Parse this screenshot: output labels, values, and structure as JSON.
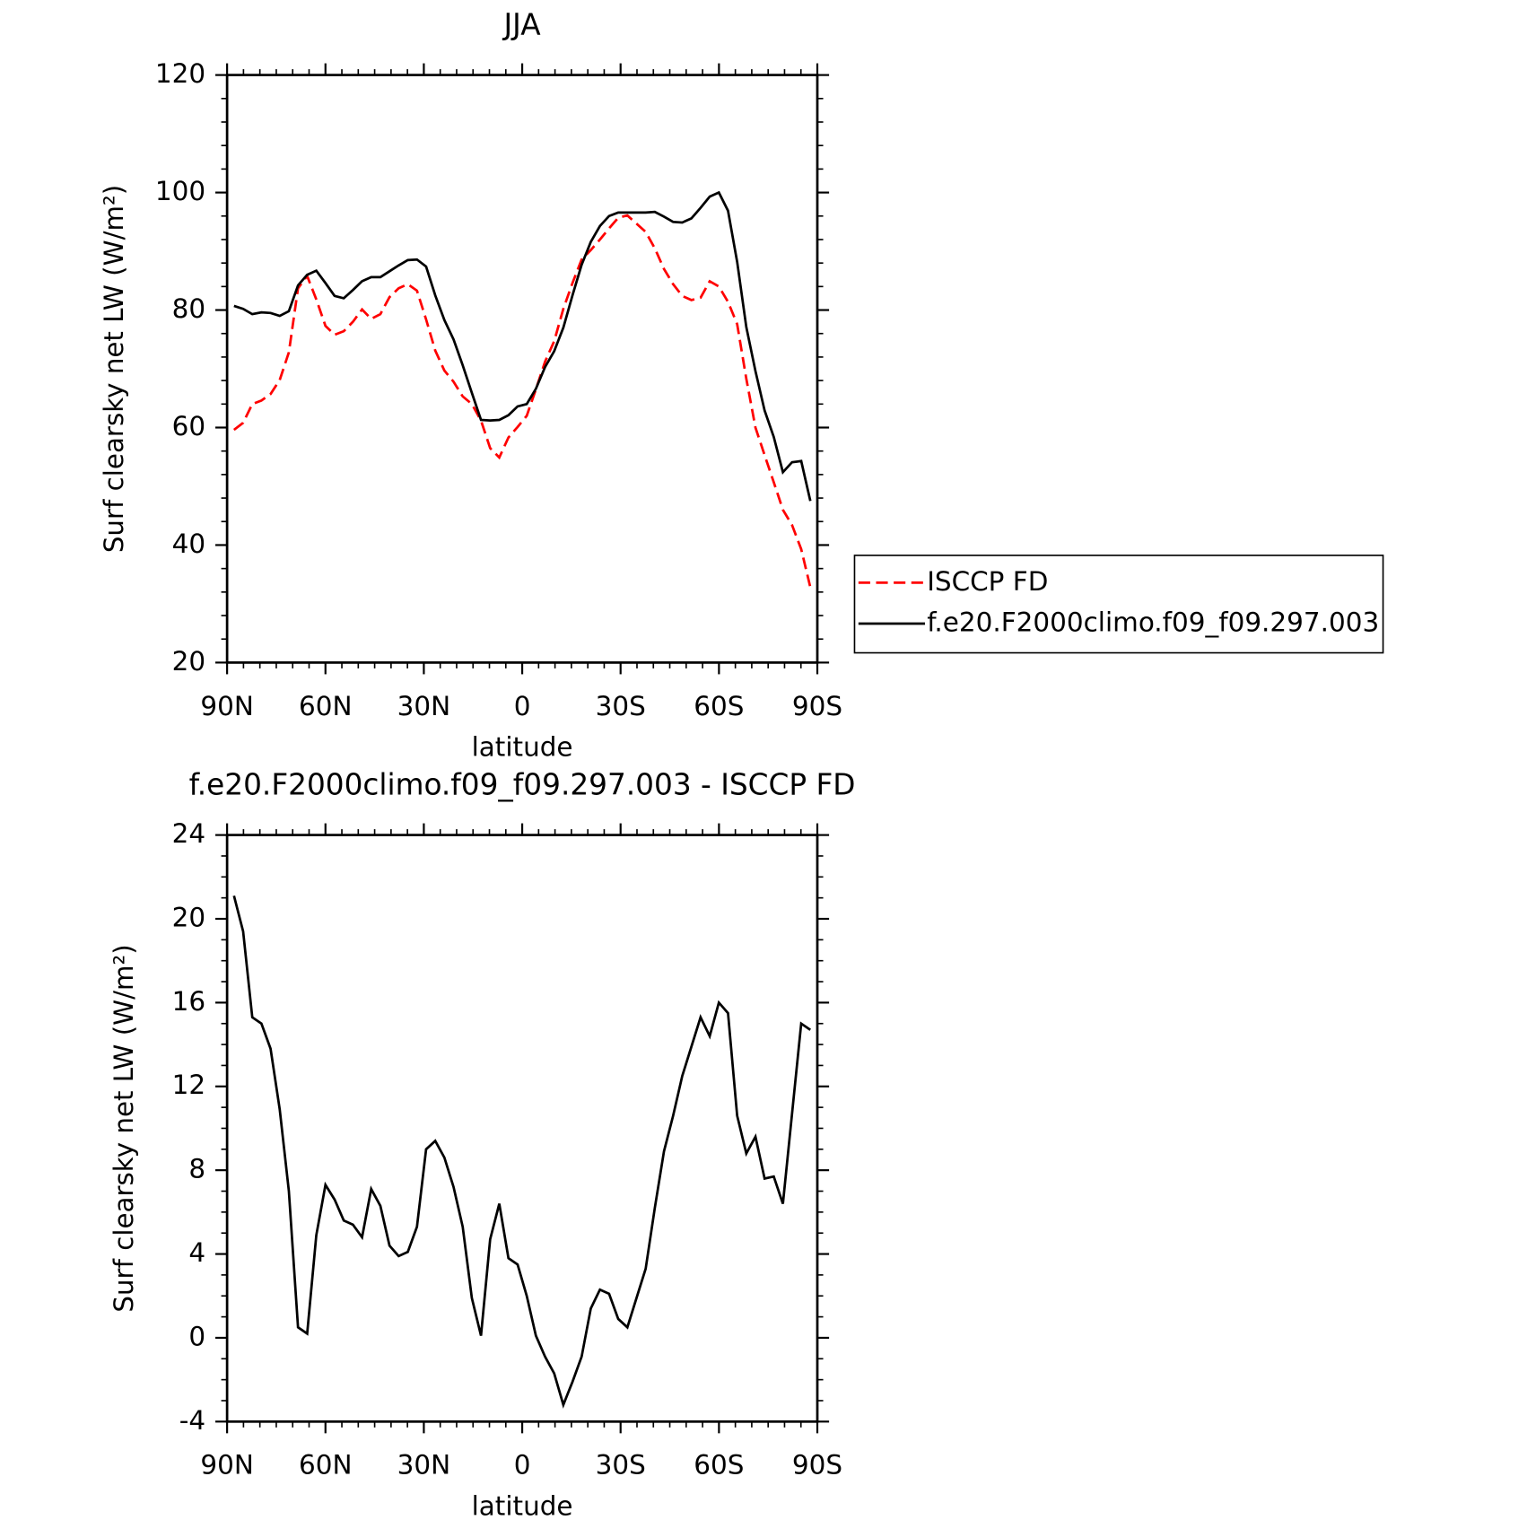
{
  "chart_data": [
    {
      "type": "line",
      "title": "JJA",
      "xlabel": "latitude",
      "ylabel": "Surf clearsky net LW (W/m²)",
      "x": [
        87.9,
        85.11,
        82.32,
        79.53,
        76.74,
        73.95,
        71.16,
        68.37,
        65.58,
        62.79,
        60.0,
        57.21,
        54.42,
        51.63,
        48.84,
        46.05,
        43.26,
        40.47,
        37.68,
        34.89,
        32.1,
        29.31,
        26.52,
        23.73,
        20.94,
        18.15,
        15.36,
        12.57,
        9.78,
        6.99,
        4.2,
        1.41,
        -1.38,
        -4.17,
        -6.96,
        -9.75,
        -12.54,
        -15.33,
        -18.12,
        -20.91,
        -23.7,
        -26.49,
        -29.28,
        -32.07,
        -34.86,
        -37.65,
        -40.44,
        -43.23,
        -46.02,
        -48.81,
        -51.6,
        -54.39,
        -57.18,
        -59.97,
        -62.76,
        -65.55,
        -68.34,
        -71.13,
        -73.92,
        -76.71,
        -79.5,
        -82.29,
        -85.08,
        -87.87
      ],
      "series": [
        {
          "name": "ISCCP FD",
          "color": "#ff0000",
          "line_style": "dashed",
          "values": [
            59.6,
            60.8,
            64.0,
            64.6,
            65.7,
            68.1,
            72.8,
            83.7,
            85.8,
            81.8,
            77.3,
            75.8,
            76.4,
            78.0,
            80.1,
            78.5,
            79.3,
            82.2,
            83.7,
            84.4,
            83.3,
            78.4,
            73.1,
            69.7,
            67.8,
            65.3,
            64.0,
            61.2,
            56.5,
            54.9,
            58.3,
            60.1,
            62.0,
            66.5,
            71.2,
            74.7,
            80.2,
            84.6,
            88.6,
            90.2,
            92.0,
            93.9,
            95.7,
            96.1,
            94.7,
            93.3,
            90.5,
            87.0,
            84.4,
            82.4,
            81.7,
            82.1,
            84.9,
            84.0,
            81.4,
            77.6,
            68.3,
            60.0,
            55.3,
            50.7,
            46.0,
            43.4,
            39.3,
            32.8
          ]
        },
        {
          "name": "f.e20.F2000climo.f09_f09.297.003",
          "color": "#000000",
          "line_style": "solid",
          "values": [
            80.7,
            80.2,
            79.3,
            79.6,
            79.5,
            79.0,
            79.8,
            84.2,
            86.0,
            86.7,
            84.6,
            82.4,
            82.0,
            83.4,
            84.9,
            85.6,
            85.6,
            86.6,
            87.6,
            88.5,
            88.6,
            87.4,
            82.5,
            78.3,
            75.0,
            70.6,
            65.9,
            61.3,
            61.2,
            61.3,
            62.1,
            63.6,
            64.0,
            66.6,
            70.3,
            73.0,
            77.0,
            82.5,
            87.7,
            91.6,
            94.3,
            96.0,
            96.6,
            96.6,
            96.6,
            96.6,
            96.7,
            95.9,
            95.0,
            94.9,
            95.6,
            97.4,
            99.3,
            100.0,
            96.9,
            88.2,
            77.1,
            69.6,
            62.9,
            58.4,
            52.4,
            54.1,
            54.3,
            47.5
          ]
        }
      ],
      "xlim": [
        90,
        -90
      ],
      "xticks": [
        {
          "value": 90,
          "label": "90N"
        },
        {
          "value": 60,
          "label": "60N"
        },
        {
          "value": 30,
          "label": "30N"
        },
        0,
        {
          "value": -30,
          "label": "30S"
        },
        {
          "value": -60,
          "label": "60S"
        },
        {
          "value": -90,
          "label": "90S"
        }
      ],
      "ylim": [
        20,
        120
      ],
      "yticks": [
        20,
        40,
        60,
        80,
        100,
        120
      ],
      "legend": "right"
    },
    {
      "type": "line",
      "title": "f.e20.F2000climo.f09_f09.297.003 - ISCCP FD",
      "xlabel": "latitude",
      "ylabel": "Surf clearsky net LW (W/m²)",
      "x": [
        87.9,
        85.11,
        82.32,
        79.53,
        76.74,
        73.95,
        71.16,
        68.37,
        65.58,
        62.79,
        60.0,
        57.21,
        54.42,
        51.63,
        48.84,
        46.05,
        43.26,
        40.47,
        37.68,
        34.89,
        32.1,
        29.31,
        26.52,
        23.73,
        20.94,
        18.15,
        15.36,
        12.57,
        9.78,
        6.99,
        4.2,
        1.41,
        -1.38,
        -4.17,
        -6.96,
        -9.75,
        -12.54,
        -15.33,
        -18.12,
        -20.91,
        -23.7,
        -26.49,
        -29.28,
        -32.07,
        -34.86,
        -37.65,
        -40.44,
        -43.23,
        -46.02,
        -48.81,
        -51.6,
        -54.39,
        -57.18,
        -59.97,
        -62.76,
        -65.55,
        -68.34,
        -71.13,
        -73.92,
        -76.71,
        -79.5,
        -82.29,
        -85.08,
        -87.87
      ],
      "series": [
        {
          "color": "#000000",
          "line_style": "solid",
          "values": [
            21.1,
            19.4,
            15.3,
            15.0,
            13.8,
            10.9,
            7.0,
            0.5,
            0.2,
            4.9,
            7.3,
            6.6,
            5.6,
            5.4,
            4.8,
            7.1,
            6.3,
            4.4,
            3.9,
            4.1,
            5.3,
            9.0,
            9.4,
            8.6,
            7.2,
            5.3,
            1.9,
            0.1,
            4.7,
            6.4,
            3.8,
            3.5,
            2.0,
            0.1,
            -0.9,
            -1.7,
            -3.2,
            -2.1,
            -0.9,
            1.4,
            2.3,
            2.1,
            0.9,
            0.5,
            1.9,
            3.3,
            6.2,
            8.9,
            10.6,
            12.5,
            13.9,
            15.3,
            14.4,
            16.0,
            15.5,
            10.6,
            8.8,
            9.6,
            7.6,
            7.7,
            6.4,
            10.7,
            15.0,
            14.7
          ]
        }
      ],
      "xlim": [
        90,
        -90
      ],
      "xticks": [
        {
          "value": 90,
          "label": "90N"
        },
        {
          "value": 60,
          "label": "60N"
        },
        {
          "value": 30,
          "label": "30N"
        },
        0,
        {
          "value": -30,
          "label": "30S"
        },
        {
          "value": -60,
          "label": "60S"
        },
        {
          "value": -90,
          "label": "90S"
        }
      ],
      "ylim": [
        -4,
        24
      ],
      "yticks": [
        -4,
        0,
        4,
        8,
        12,
        16,
        20,
        24
      ]
    }
  ]
}
